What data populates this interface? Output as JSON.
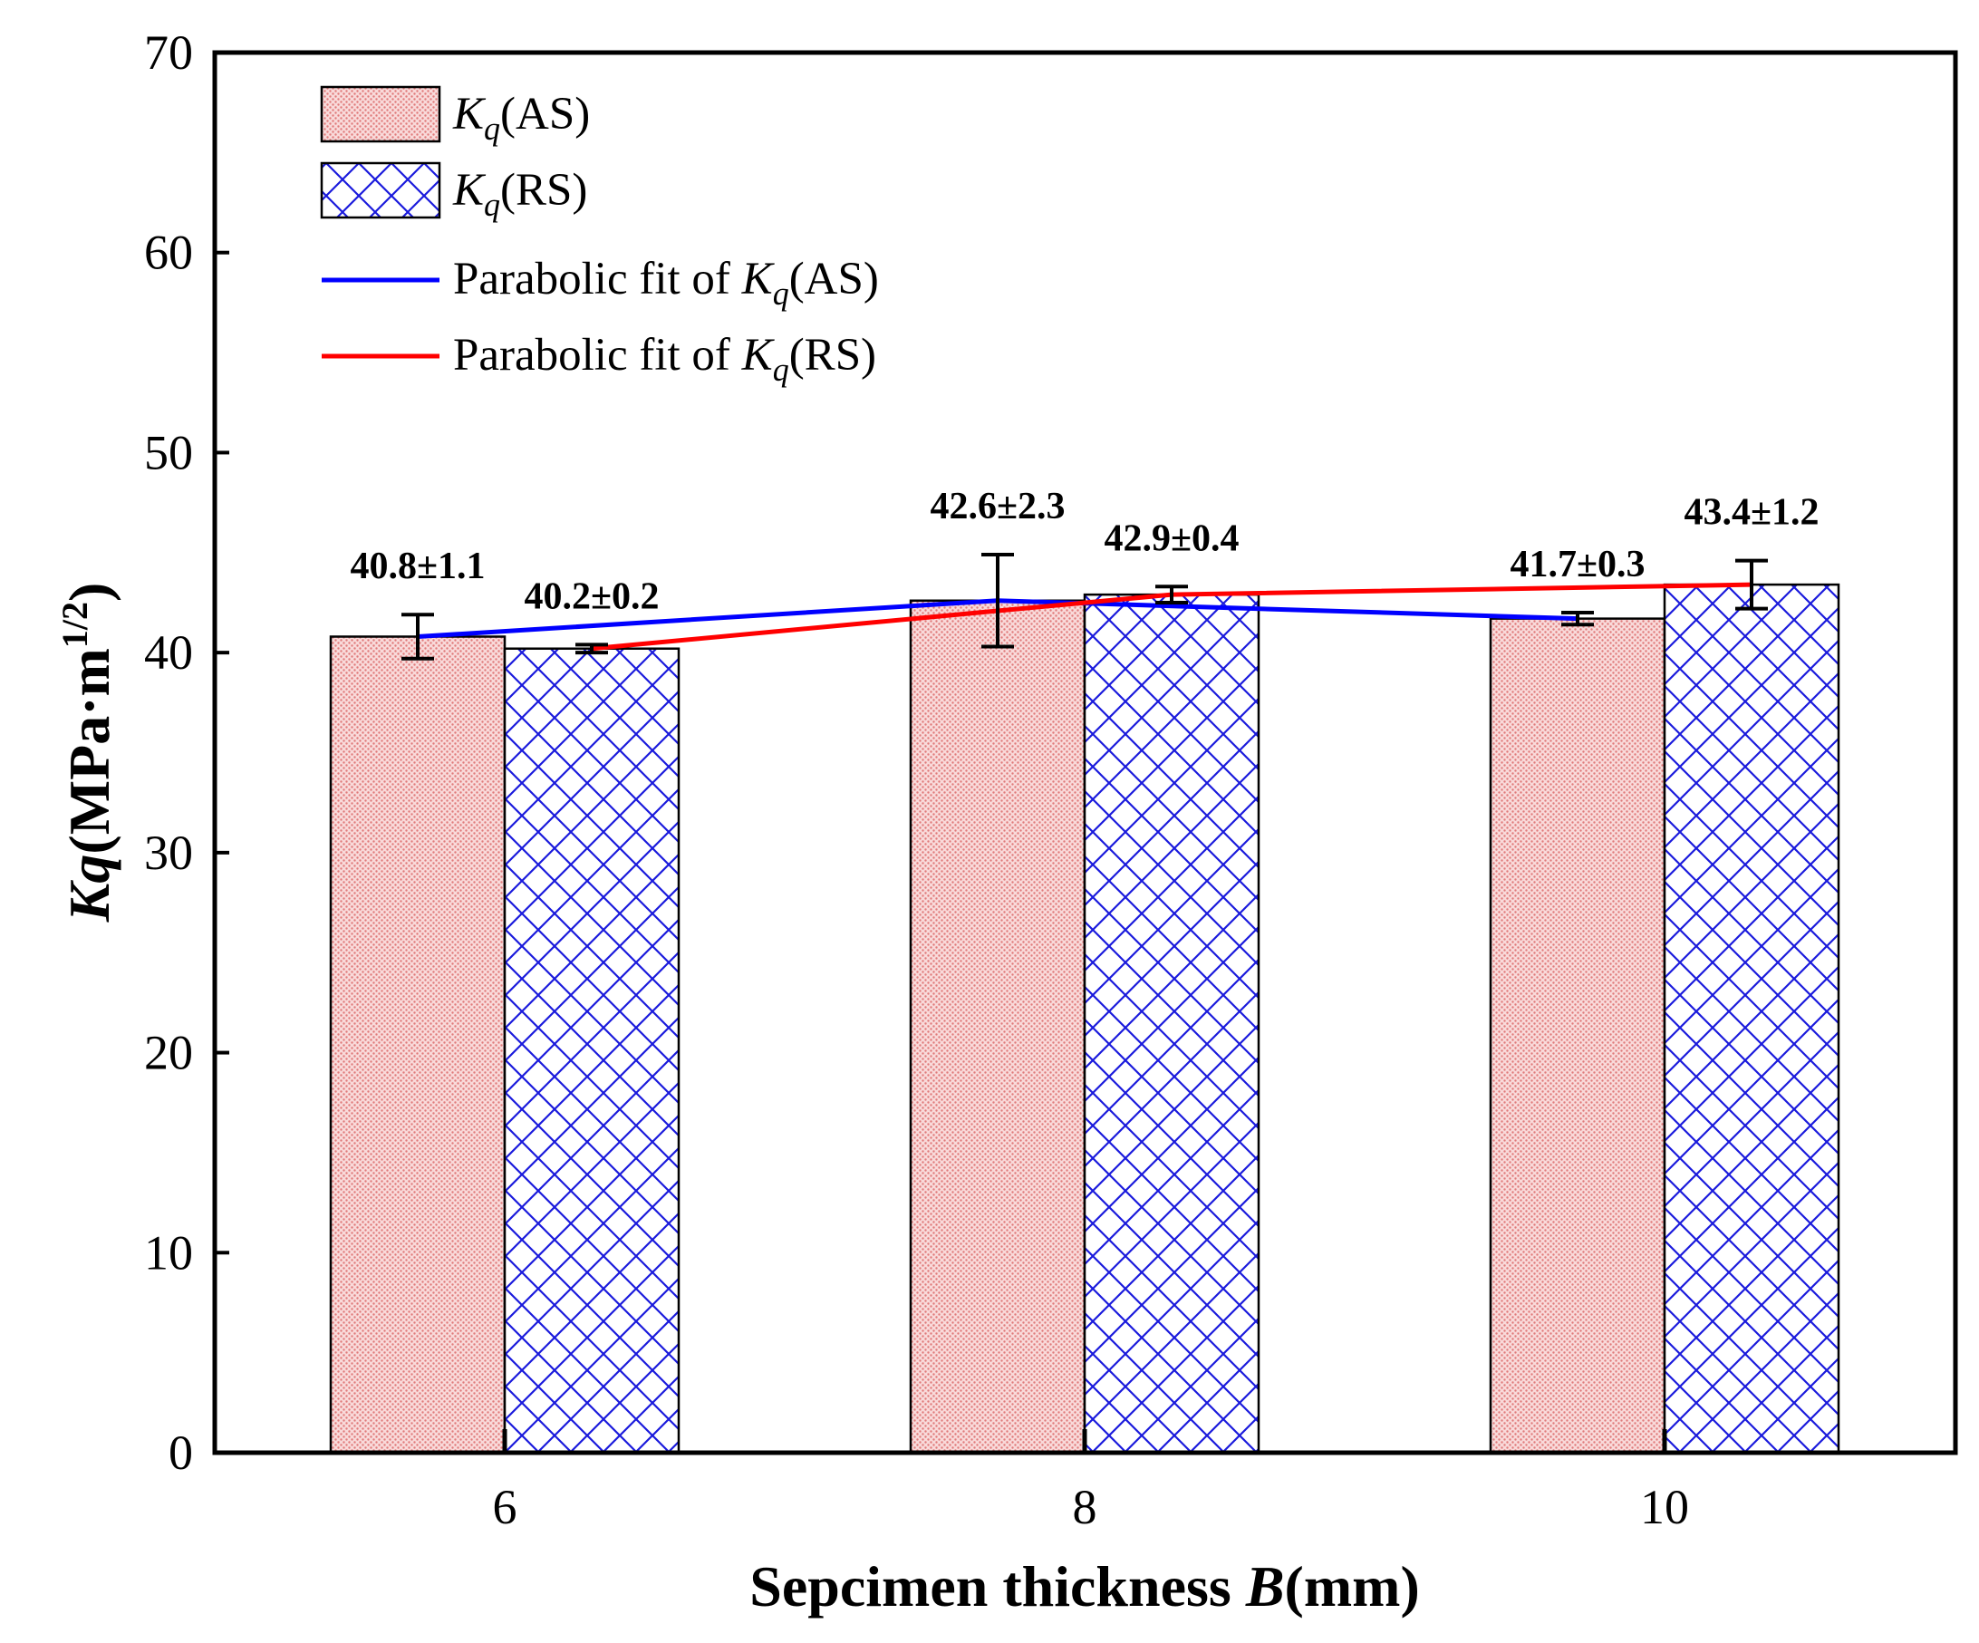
{
  "chart_data": {
    "type": "bar",
    "xlabel": {
      "main": "Sepcimen thickness ",
      "var": "B",
      "unit": "(mm)"
    },
    "ylabel": {
      "var": "Kq",
      "unit": "(MPa·m",
      "exp": "1/2",
      "close": ")"
    },
    "categories": [
      "6",
      "8",
      "10"
    ],
    "ylim": [
      0,
      70
    ],
    "yticks": [
      0,
      10,
      20,
      30,
      40,
      50,
      60,
      70
    ],
    "grid": false,
    "legend_position": "top-left",
    "series": [
      {
        "name": "Kq(AS)",
        "legend": {
          "k": "K",
          "sub": "q",
          "rest": "(AS)"
        },
        "values": [
          40.8,
          42.6,
          41.7
        ],
        "errors": [
          1.1,
          2.3,
          0.3
        ],
        "labels": [
          "40.8±1.1",
          "42.6±2.3",
          "41.7±0.3"
        ],
        "fill": "#f0a8a8",
        "pattern": "dots"
      },
      {
        "name": "Kq(RS)",
        "legend": {
          "k": "K",
          "sub": "q",
          "rest": "(RS)"
        },
        "values": [
          40.2,
          42.9,
          43.4
        ],
        "errors": [
          0.2,
          0.4,
          1.2
        ],
        "labels": [
          "40.2±0.2",
          "42.9±0.4",
          "43.4±1.2"
        ],
        "fill": "#1a1adc",
        "pattern": "crosshatch"
      }
    ],
    "fits": [
      {
        "name": "Parabolic fit of Kq(AS)",
        "legend": {
          "pre": "Parabolic fit of ",
          "k": "K",
          "sub": "q",
          "rest": "(AS)"
        },
        "color": "#0000ff",
        "of_series": 0
      },
      {
        "name": "Parabolic fit of Kq(RS)",
        "legend": {
          "pre": "Parabolic fit of ",
          "k": "K",
          "sub": "q",
          "rest": "(RS)"
        },
        "color": "#ff0000",
        "of_series": 1
      }
    ]
  }
}
